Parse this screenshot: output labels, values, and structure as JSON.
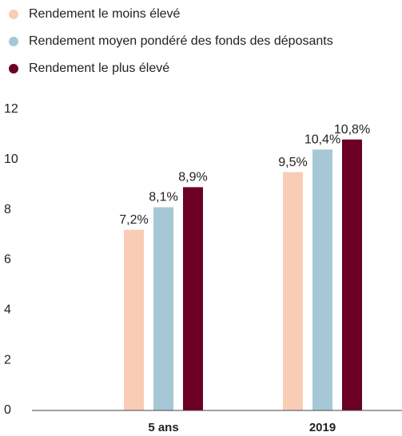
{
  "chart_data": {
    "type": "bar",
    "categories": [
      "5 ans",
      "2019"
    ],
    "series": [
      {
        "name": "Rendement le moins élevé",
        "color": "#f9cdb5",
        "values": [
          7.2,
          9.5
        ],
        "value_labels": [
          "7,2%",
          "9,5%"
        ]
      },
      {
        "name": "Rendement moyen pondéré des fonds des déposants",
        "color": "#a6c8d6",
        "values": [
          8.1,
          10.4
        ],
        "value_labels": [
          "8,1%",
          "10,4%"
        ]
      },
      {
        "name": "Rendement le plus élevé",
        "color": "#6b0024",
        "values": [
          8.9,
          10.8
        ],
        "value_labels": [
          "8,9%",
          "10,8%"
        ]
      }
    ],
    "ylim": [
      0,
      12
    ],
    "yticks": [
      0,
      2,
      4,
      6,
      8,
      10,
      12
    ],
    "grid": false,
    "legend": "top-left"
  }
}
